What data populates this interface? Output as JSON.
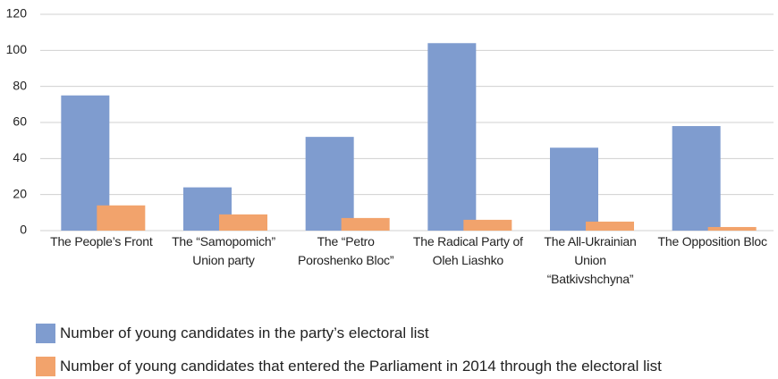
{
  "chart_data": {
    "type": "bar",
    "categories": [
      "The People’s Front",
      "The “Samopomich” Union party",
      "The “Petro Poroshenko Bloc”",
      "The Radical Party of Oleh Liashko",
      "The All-Ukrainian Union “Batkivshchyna”",
      "The Opposition Bloc"
    ],
    "series": [
      {
        "name": "Number of young candidates in the party’s electoral list",
        "color": "#7f9ccf",
        "values": [
          75,
          24,
          52,
          104,
          46,
          58
        ]
      },
      {
        "name": "Number of young candidates that entered the Parliament in 2014 through the electoral list",
        "color": "#f2a36c",
        "values": [
          14,
          9,
          7,
          6,
          5,
          2
        ]
      }
    ],
    "ylim": [
      0,
      120
    ],
    "yticks": [
      0,
      20,
      40,
      60,
      80,
      100,
      120
    ],
    "grid": true
  }
}
